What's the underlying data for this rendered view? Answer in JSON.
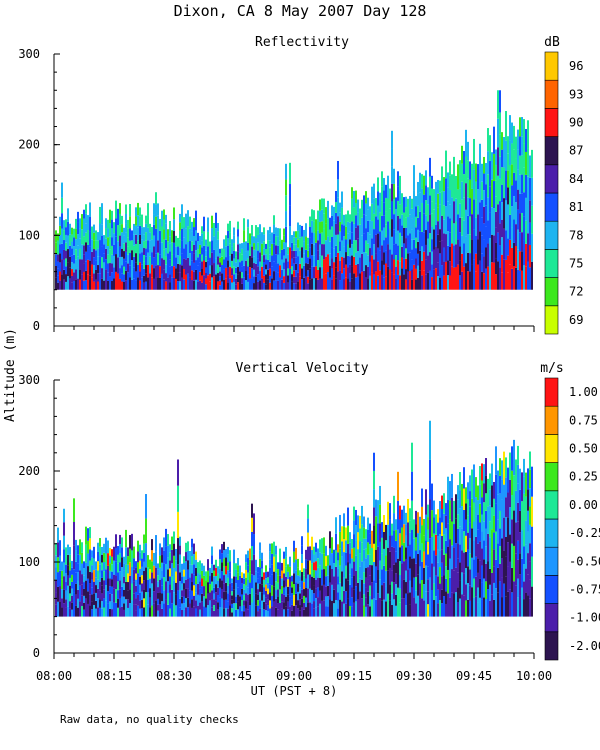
{
  "figure": {
    "title": "Dixon, CA  8 May 2007  Day 128",
    "footnote": "Raw data, no quality checks"
  },
  "chart_data": [
    {
      "type": "heatmap",
      "title": "Reflectivity",
      "ylabel": "Altitude (m)",
      "xlabel": "",
      "ylim": [
        0,
        300
      ],
      "yticks": [
        0,
        100,
        200,
        300
      ],
      "xlim": [
        "08:00",
        "10:00"
      ],
      "colorbar_unit": "dB",
      "colorbar_ticks": [
        "69",
        "72",
        "75",
        "78",
        "81",
        "84",
        "87",
        "90",
        "93",
        "96"
      ],
      "colorbar_colors": [
        "#c8ff00",
        "#3ce81e",
        "#1ee896",
        "#1eb4f0",
        "#1450ff",
        "#4b1eaa",
        "#2d1450",
        "#ff1414",
        "#ff6400",
        "#ffc800"
      ],
      "base_altitude": 40,
      "echo_top_profile": [
        {
          "time": "08:00",
          "top": 120
        },
        {
          "time": "08:30",
          "top": 118
        },
        {
          "time": "08:45",
          "top": 100
        },
        {
          "time": "09:00",
          "top": 105
        },
        {
          "time": "09:15",
          "top": 145
        },
        {
          "time": "09:30",
          "top": 160
        },
        {
          "time": "09:45",
          "top": 190
        },
        {
          "time": "09:55",
          "top": 225
        },
        {
          "time": "10:00",
          "top": 200
        }
      ]
    },
    {
      "type": "heatmap",
      "title": "Vertical Velocity",
      "ylabel": "Altitude (m)",
      "xlabel": "UT  (PST + 8)",
      "ylim": [
        0,
        300
      ],
      "yticks": [
        0,
        100,
        200,
        300
      ],
      "xlim": [
        "08:00",
        "10:00"
      ],
      "xticks": [
        "08:00",
        "08:15",
        "08:30",
        "08:45",
        "09:00",
        "09:15",
        "09:30",
        "09:45",
        "10:00"
      ],
      "colorbar_unit": "m/s",
      "colorbar_ticks": [
        "-2.00",
        "-1.00",
        "-0.75",
        "-0.50",
        "-0.25",
        "0.00",
        "0.25",
        "0.50",
        "0.75",
        "1.00"
      ],
      "colorbar_colors": [
        "#2d1450",
        "#4b1eaa",
        "#1450ff",
        "#1e96ff",
        "#1eb4f0",
        "#1ee896",
        "#3ce81e",
        "#ffe600",
        "#ff9600",
        "#ff1414"
      ],
      "base_altitude": 40,
      "echo_top_profile": [
        {
          "time": "08:00",
          "top": 120
        },
        {
          "time": "08:30",
          "top": 118
        },
        {
          "time": "08:45",
          "top": 100
        },
        {
          "time": "09:00",
          "top": 105
        },
        {
          "time": "09:15",
          "top": 145
        },
        {
          "time": "09:30",
          "top": 160
        },
        {
          "time": "09:45",
          "top": 190
        },
        {
          "time": "09:55",
          "top": 225
        },
        {
          "time": "10:00",
          "top": 200
        }
      ]
    }
  ]
}
